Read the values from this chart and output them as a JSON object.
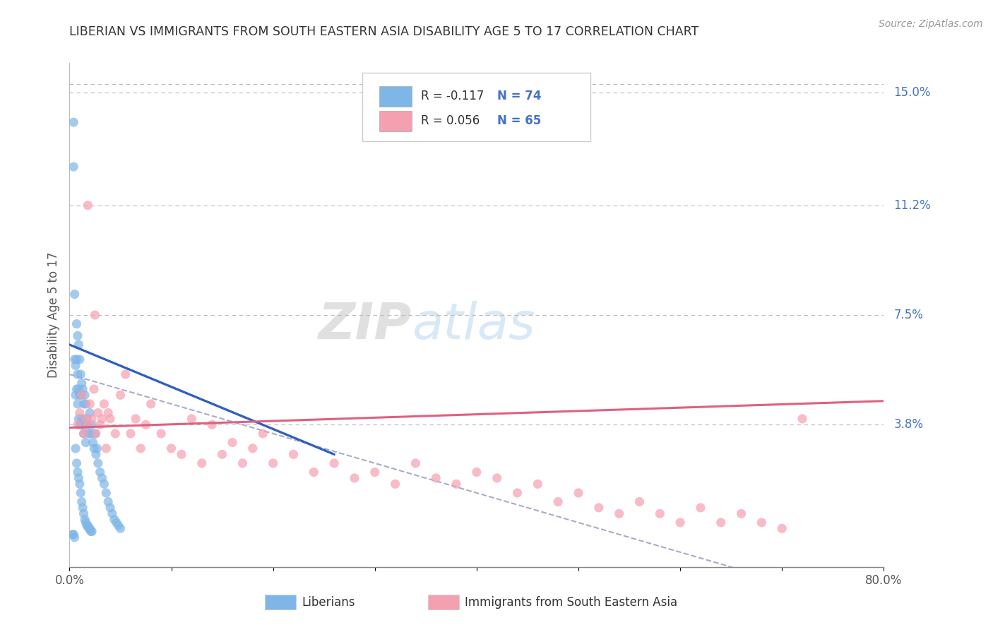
{
  "title": "LIBERIAN VS IMMIGRANTS FROM SOUTH EASTERN ASIA DISABILITY AGE 5 TO 17 CORRELATION CHART",
  "source": "Source: ZipAtlas.com",
  "ylabel": "Disability Age 5 to 17",
  "xlim": [
    0.0,
    0.8
  ],
  "ylim": [
    -0.01,
    0.16
  ],
  "xticks": [
    0.0,
    0.1,
    0.2,
    0.3,
    0.4,
    0.5,
    0.6,
    0.7,
    0.8
  ],
  "xtick_labels": [
    "0.0%",
    "",
    "",
    "",
    "",
    "",
    "",
    "",
    "80.0%"
  ],
  "ytick_labels": [
    "15.0%",
    "11.2%",
    "7.5%",
    "3.8%"
  ],
  "ytick_values": [
    0.15,
    0.112,
    0.075,
    0.038
  ],
  "liberian_color": "#7EB6E8",
  "immigrant_color": "#F4A0B0",
  "title_color": "#333333",
  "axis_label_color": "#4472C4",
  "watermark_zip": "ZIP",
  "watermark_atlas": "atlas",
  "grid_color": "#BBBBBB",
  "blue_line_color": "#3060C0",
  "pink_line_color": "#E06080",
  "gray_line_color": "#AAAACC",
  "legend_blue_label_r": "R = -0.117",
  "legend_blue_label_n": "N = 74",
  "legend_pink_label_r": "R = 0.056",
  "legend_pink_label_n": "N = 65",
  "liberian_x": [
    0.004,
    0.004,
    0.005,
    0.005,
    0.006,
    0.006,
    0.007,
    0.007,
    0.007,
    0.008,
    0.008,
    0.008,
    0.009,
    0.009,
    0.009,
    0.01,
    0.01,
    0.01,
    0.011,
    0.011,
    0.011,
    0.012,
    0.012,
    0.013,
    0.013,
    0.014,
    0.014,
    0.015,
    0.015,
    0.016,
    0.016,
    0.017,
    0.018,
    0.019,
    0.02,
    0.021,
    0.022,
    0.023,
    0.024,
    0.025,
    0.026,
    0.027,
    0.028,
    0.03,
    0.032,
    0.034,
    0.036,
    0.038,
    0.04,
    0.042,
    0.044,
    0.046,
    0.048,
    0.05,
    0.006,
    0.007,
    0.008,
    0.009,
    0.01,
    0.011,
    0.012,
    0.013,
    0.014,
    0.015,
    0.016,
    0.017,
    0.018,
    0.019,
    0.02,
    0.021,
    0.022,
    0.003,
    0.004,
    0.005
  ],
  "liberian_y": [
    0.14,
    0.125,
    0.082,
    0.06,
    0.058,
    0.048,
    0.072,
    0.06,
    0.05,
    0.068,
    0.055,
    0.045,
    0.065,
    0.05,
    0.04,
    0.06,
    0.048,
    0.038,
    0.055,
    0.048,
    0.038,
    0.052,
    0.04,
    0.05,
    0.038,
    0.045,
    0.035,
    0.048,
    0.038,
    0.045,
    0.032,
    0.04,
    0.038,
    0.035,
    0.042,
    0.035,
    0.038,
    0.032,
    0.03,
    0.035,
    0.028,
    0.03,
    0.025,
    0.022,
    0.02,
    0.018,
    0.015,
    0.012,
    0.01,
    0.008,
    0.006,
    0.005,
    0.004,
    0.003,
    0.03,
    0.025,
    0.022,
    0.02,
    0.018,
    0.015,
    0.012,
    0.01,
    0.008,
    0.006,
    0.005,
    0.004,
    0.004,
    0.003,
    0.003,
    0.002,
    0.002,
    0.001,
    0.001,
    0.0
  ],
  "immigrant_x": [
    0.008,
    0.01,
    0.012,
    0.014,
    0.016,
    0.018,
    0.02,
    0.022,
    0.024,
    0.026,
    0.028,
    0.03,
    0.032,
    0.034,
    0.036,
    0.038,
    0.04,
    0.045,
    0.05,
    0.055,
    0.06,
    0.065,
    0.07,
    0.075,
    0.08,
    0.09,
    0.1,
    0.11,
    0.12,
    0.13,
    0.14,
    0.15,
    0.16,
    0.17,
    0.18,
    0.19,
    0.2,
    0.22,
    0.24,
    0.26,
    0.28,
    0.3,
    0.32,
    0.34,
    0.36,
    0.38,
    0.4,
    0.42,
    0.44,
    0.46,
    0.48,
    0.5,
    0.52,
    0.54,
    0.56,
    0.58,
    0.6,
    0.62,
    0.64,
    0.66,
    0.68,
    0.7,
    0.72,
    0.018,
    0.025
  ],
  "immigrant_y": [
    0.038,
    0.042,
    0.048,
    0.035,
    0.04,
    0.038,
    0.045,
    0.04,
    0.05,
    0.035,
    0.042,
    0.038,
    0.04,
    0.045,
    0.03,
    0.042,
    0.04,
    0.035,
    0.048,
    0.055,
    0.035,
    0.04,
    0.03,
    0.038,
    0.045,
    0.035,
    0.03,
    0.028,
    0.04,
    0.025,
    0.038,
    0.028,
    0.032,
    0.025,
    0.03,
    0.035,
    0.025,
    0.028,
    0.022,
    0.025,
    0.02,
    0.022,
    0.018,
    0.025,
    0.02,
    0.018,
    0.022,
    0.02,
    0.015,
    0.018,
    0.012,
    0.015,
    0.01,
    0.008,
    0.012,
    0.008,
    0.005,
    0.01,
    0.005,
    0.008,
    0.005,
    0.003,
    0.04,
    0.112,
    0.075
  ]
}
